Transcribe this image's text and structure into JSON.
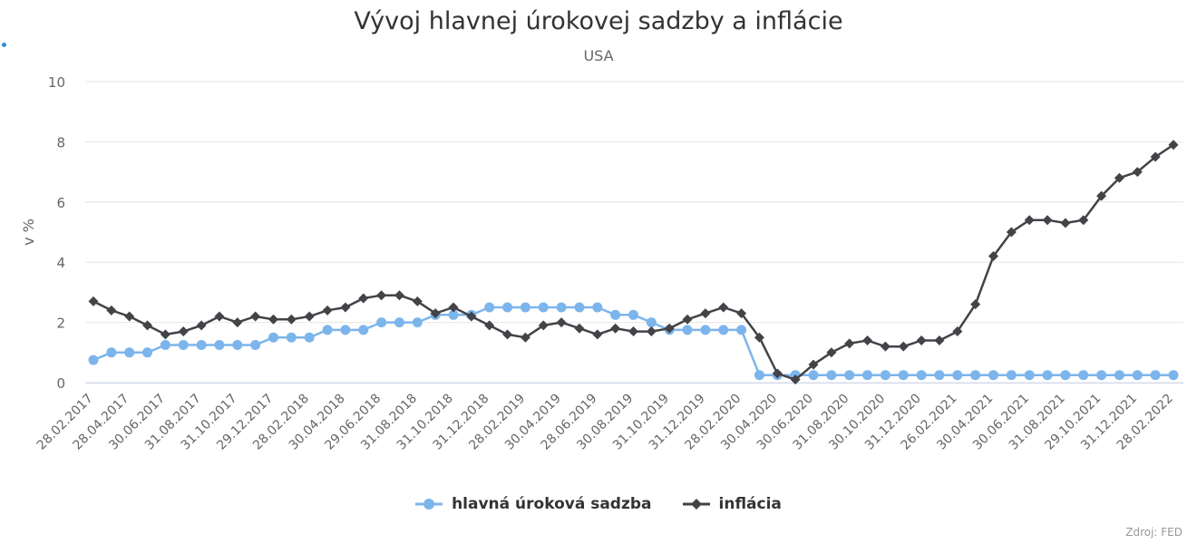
{
  "colors": {
    "rate": "#7cb5ec",
    "inflation": "#434348",
    "grid": "#e6e6e6",
    "source": "#999999"
  },
  "source": "Zdroj: FED",
  "chart_data": {
    "type": "line",
    "title": "Vývoj hlavnej úrokovej sadzby a inflácie",
    "subtitle": "USA",
    "xlabel": "",
    "ylabel": "v %",
    "ylim": [
      0,
      10
    ],
    "yticks": [
      0,
      2,
      4,
      6,
      8,
      10
    ],
    "grid": true,
    "legend_position": "bottom-center",
    "categories": [
      "28.02.2017",
      "31.03.2017",
      "28.04.2017",
      "31.05.2017",
      "30.06.2017",
      "31.07.2017",
      "31.08.2017",
      "29.09.2017",
      "31.10.2017",
      "30.11.2017",
      "29.12.2017",
      "31.01.2018",
      "28.02.2018",
      "30.03.2018",
      "30.04.2018",
      "31.05.2018",
      "29.06.2018",
      "31.07.2018",
      "31.08.2018",
      "28.09.2018",
      "31.10.2018",
      "30.11.2018",
      "31.12.2018",
      "31.01.2019",
      "28.02.2019",
      "29.03.2019",
      "30.04.2019",
      "31.05.2019",
      "28.06.2019",
      "31.07.2019",
      "30.08.2019",
      "30.09.2019",
      "31.10.2019",
      "29.11.2019",
      "31.12.2019",
      "31.01.2020",
      "28.02.2020",
      "31.03.2020",
      "30.04.2020",
      "29.05.2020",
      "30.06.2020",
      "31.07.2020",
      "31.08.2020",
      "30.09.2020",
      "30.10.2020",
      "30.11.2020",
      "31.12.2020",
      "29.01.2021",
      "26.02.2021",
      "31.03.2021",
      "30.04.2021",
      "31.05.2021",
      "30.06.2021",
      "30.07.2021",
      "31.08.2021",
      "30.09.2021",
      "29.10.2021",
      "30.11.2021",
      "31.12.2021",
      "31.01.2022",
      "28.02.2022"
    ],
    "tick_labels": [
      "28.02.2017",
      "28.04.2017",
      "30.06.2017",
      "31.08.2017",
      "31.10.2017",
      "29.12.2017",
      "28.02.2018",
      "30.04.2018",
      "29.06.2018",
      "31.08.2018",
      "31.10.2018",
      "31.12.2018",
      "28.02.2019",
      "30.04.2019",
      "28.06.2019",
      "30.08.2019",
      "31.10.2019",
      "31.12.2019",
      "28.02.2020",
      "30.04.2020",
      "30.06.2020",
      "31.08.2020",
      "30.10.2020",
      "31.12.2020",
      "26.02.2021",
      "30.04.2021",
      "30.06.2021",
      "31.08.2021",
      "29.10.2021",
      "31.12.2021",
      "28.02.2022"
    ],
    "series": [
      {
        "name": "hlavná úroková sadzba",
        "marker": "circle",
        "values": [
          0.75,
          1.0,
          1.0,
          1.0,
          1.25,
          1.25,
          1.25,
          1.25,
          1.25,
          1.25,
          1.5,
          1.5,
          1.5,
          1.75,
          1.75,
          1.75,
          2.0,
          2.0,
          2.0,
          2.25,
          2.25,
          2.25,
          2.5,
          2.5,
          2.5,
          2.5,
          2.5,
          2.5,
          2.5,
          2.25,
          2.25,
          2.0,
          1.75,
          1.75,
          1.75,
          1.75,
          1.75,
          0.25,
          0.25,
          0.25,
          0.25,
          0.25,
          0.25,
          0.25,
          0.25,
          0.25,
          0.25,
          0.25,
          0.25,
          0.25,
          0.25,
          0.25,
          0.25,
          0.25,
          0.25,
          0.25,
          0.25,
          0.25,
          0.25,
          0.25,
          0.25
        ]
      },
      {
        "name": "inflácia",
        "marker": "diamond",
        "values": [
          2.7,
          2.4,
          2.2,
          1.9,
          1.6,
          1.7,
          1.9,
          2.2,
          2.0,
          2.2,
          2.1,
          2.1,
          2.2,
          2.4,
          2.5,
          2.8,
          2.9,
          2.9,
          2.7,
          2.3,
          2.5,
          2.2,
          1.9,
          1.6,
          1.5,
          1.9,
          2.0,
          1.8,
          1.6,
          1.8,
          1.7,
          1.7,
          1.8,
          2.1,
          2.3,
          2.5,
          2.3,
          1.5,
          0.3,
          0.1,
          0.6,
          1.0,
          1.3,
          1.4,
          1.2,
          1.2,
          1.4,
          1.4,
          1.7,
          2.6,
          4.2,
          5.0,
          5.4,
          5.4,
          5.3,
          5.4,
          6.2,
          6.8,
          7.0,
          7.5,
          7.9
        ]
      }
    ]
  }
}
